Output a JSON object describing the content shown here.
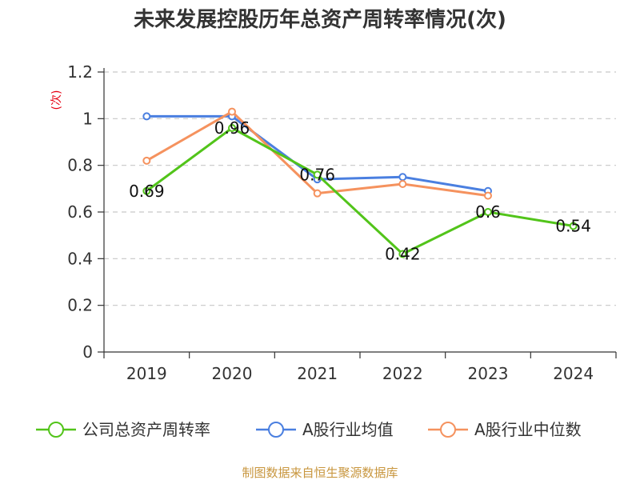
{
  "chart_data": {
    "type": "line",
    "title": "未来发展控股历年总资产周转率情况(次)",
    "ylabel": "(次)",
    "xlabel": "",
    "categories": [
      "2019",
      "2020",
      "2021",
      "2022",
      "2023",
      "2024"
    ],
    "ylim": [
      0,
      1.2
    ],
    "yticks": [
      0,
      0.2,
      0.4,
      0.6,
      0.8,
      1,
      1.2
    ],
    "ytick_labels": [
      "0",
      "0.2",
      "0.4",
      "0.6",
      "0.8",
      "1",
      "1.2"
    ],
    "grid": true,
    "legend_position": "bottom",
    "series": [
      {
        "name": "公司总资产周转率",
        "values": [
          0.69,
          0.96,
          0.76,
          0.42,
          0.6,
          0.54
        ],
        "labels": [
          "0.69",
          "0.96",
          "0.76",
          "0.42",
          "0.6",
          "0.54"
        ],
        "color": "#52c41a"
      },
      {
        "name": "A股行业均值",
        "values": [
          1.01,
          1.01,
          0.74,
          0.75,
          0.69,
          null
        ],
        "color": "#4a7fe0"
      },
      {
        "name": "A股行业中位数",
        "values": [
          0.82,
          1.03,
          0.68,
          0.72,
          0.67,
          null
        ],
        "color": "#f5925e"
      }
    ],
    "source": "制图数据来自恒生聚源数据库"
  }
}
